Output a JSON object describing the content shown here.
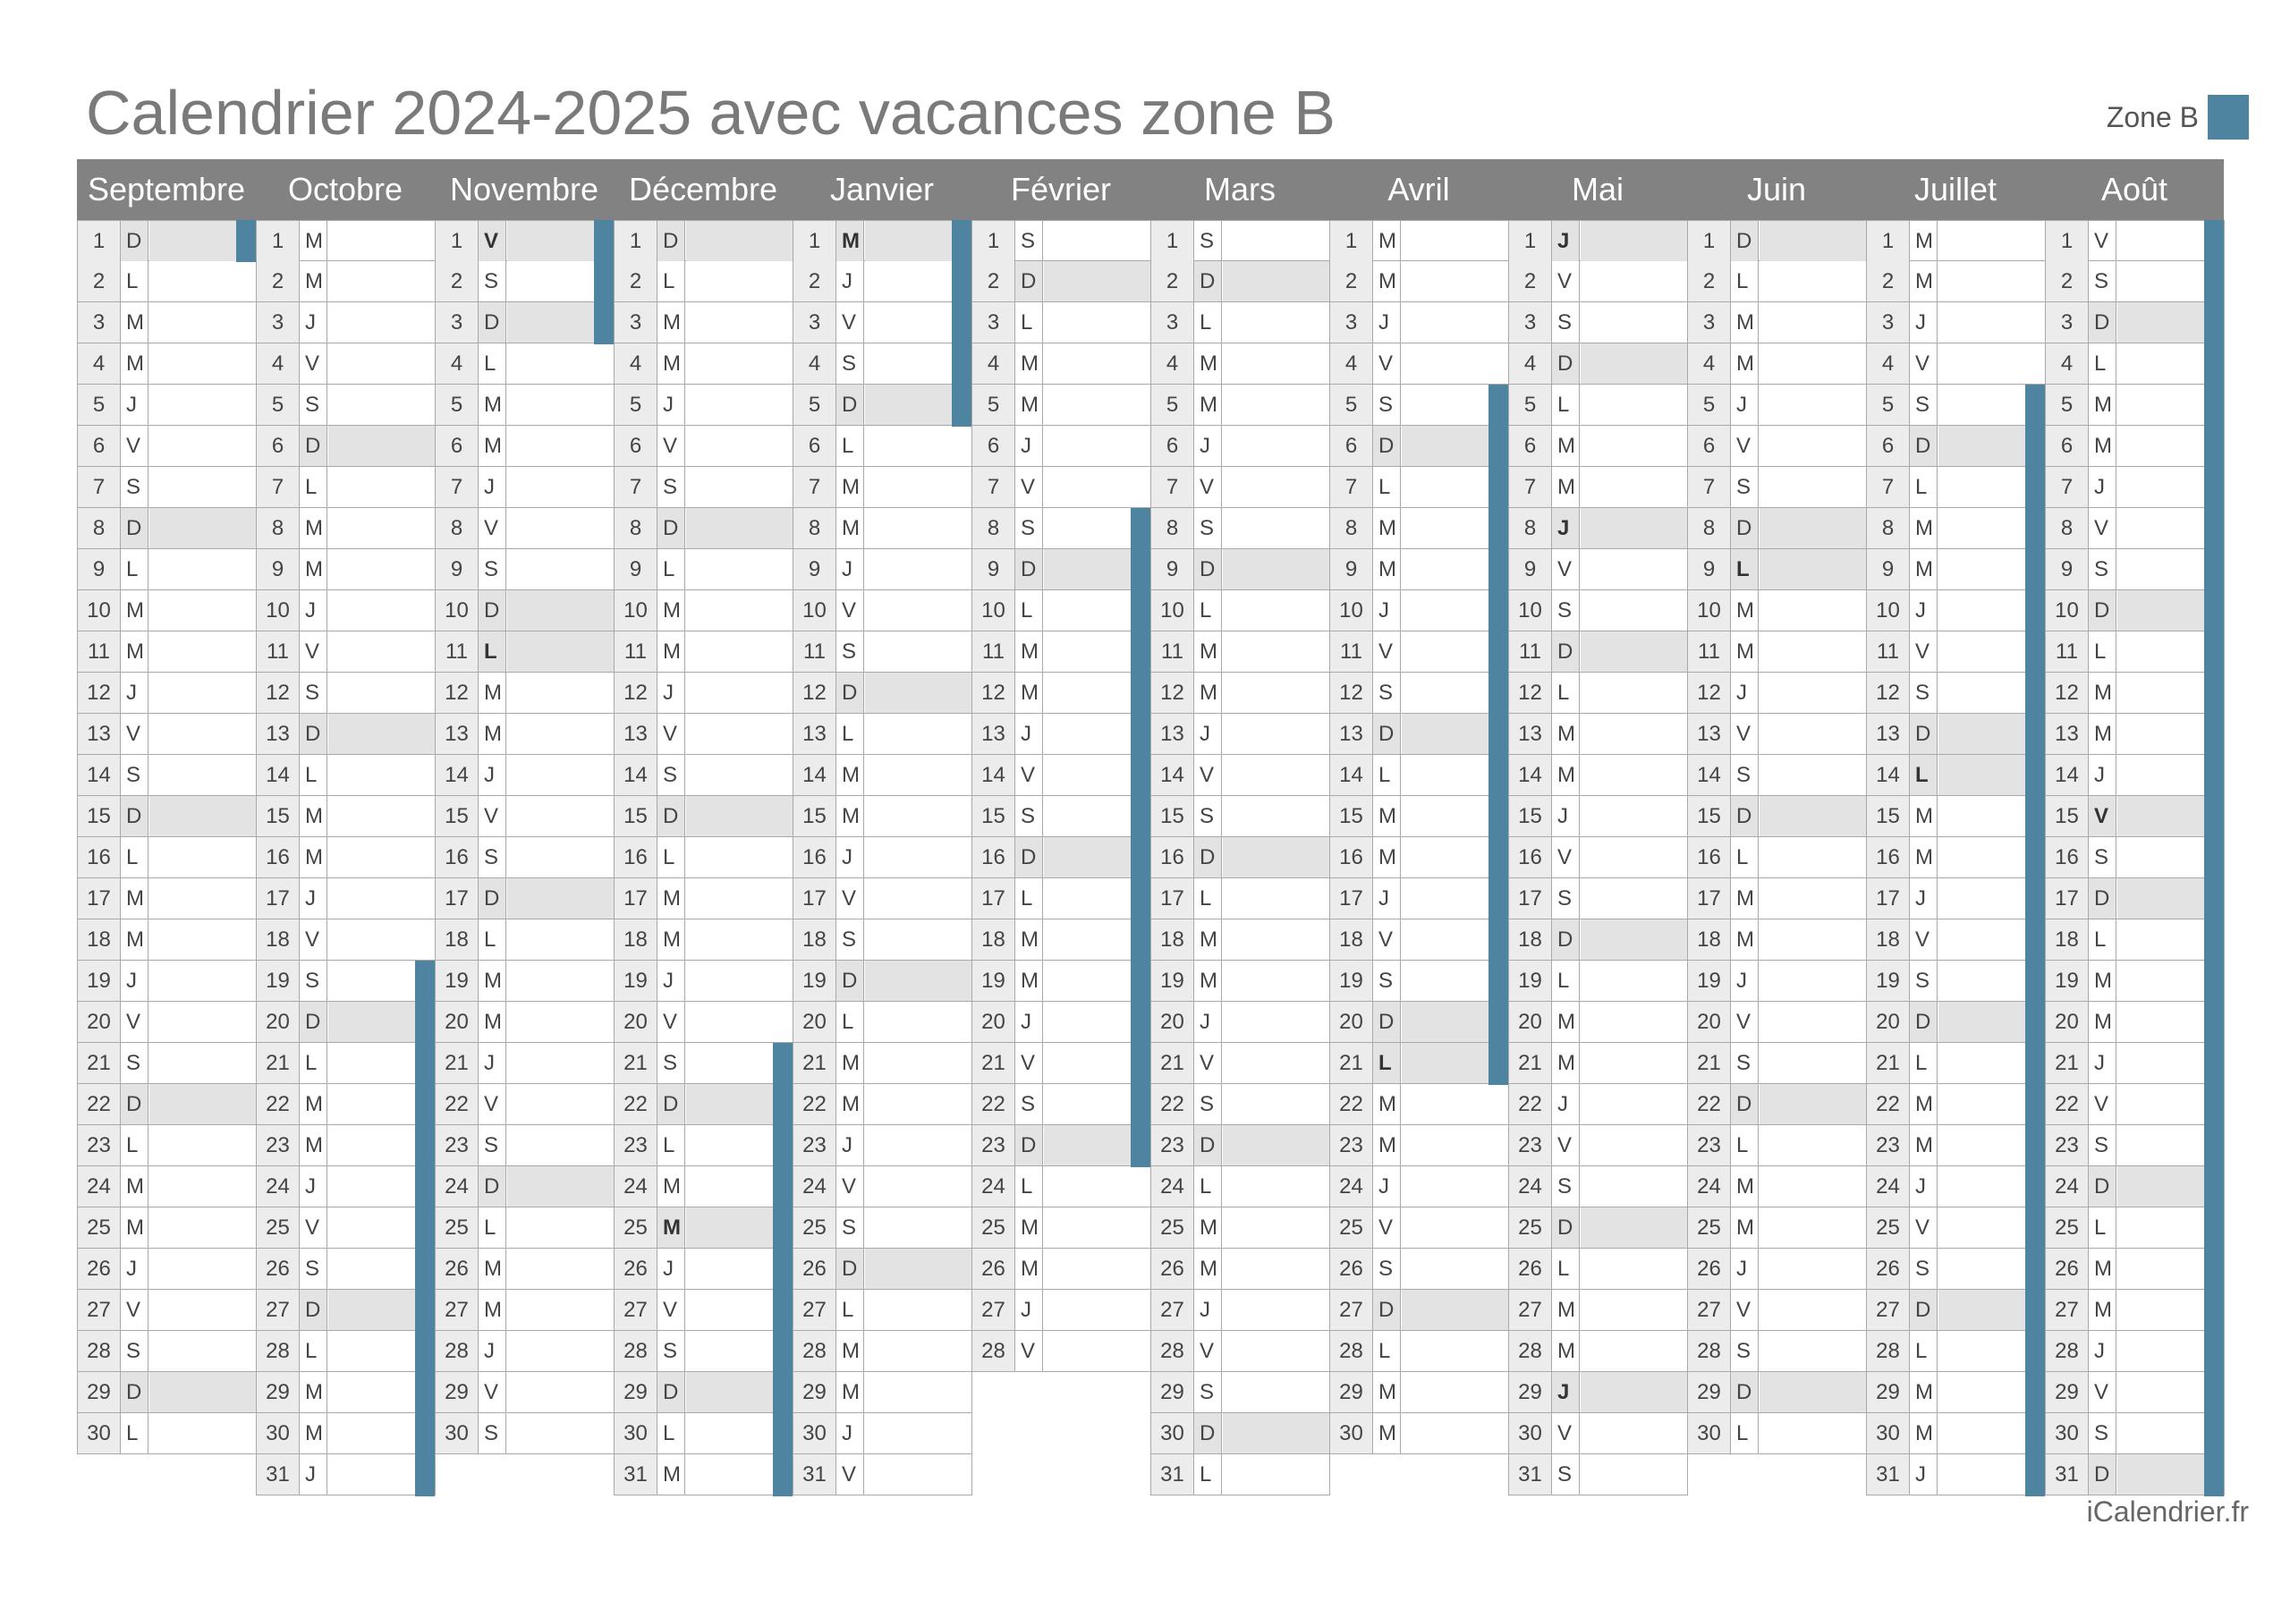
{
  "page": {
    "title": "Calendrier 2024-2025 avec vacances zone B",
    "legend_label": "Zone B",
    "credit": "iCalendrier.fr"
  },
  "colors": {
    "vacation": "#4f84a0",
    "header_bg": "#828282",
    "weekend": "#e3e3e3",
    "daynum_bg": "#ececec"
  },
  "months": [
    {
      "name": "Septembre",
      "days": 30,
      "start_index": 6,
      "holidays": [],
      "vacations": [
        [
          1,
          1
        ]
      ]
    },
    {
      "name": "Octobre",
      "days": 31,
      "start_index": 1,
      "holidays": [],
      "vacations": [
        [
          19,
          31
        ]
      ]
    },
    {
      "name": "Novembre",
      "days": 30,
      "start_index": 4,
      "holidays": [
        1,
        11
      ],
      "vacations": [
        [
          1,
          3
        ]
      ]
    },
    {
      "name": "Décembre",
      "days": 31,
      "start_index": 6,
      "holidays": [
        25
      ],
      "vacations": [
        [
          21,
          31
        ]
      ]
    },
    {
      "name": "Janvier",
      "days": 31,
      "start_index": 2,
      "holidays": [
        1
      ],
      "vacations": [
        [
          1,
          5
        ]
      ]
    },
    {
      "name": "Février",
      "days": 28,
      "start_index": 5,
      "holidays": [],
      "vacations": [
        [
          8,
          23
        ]
      ]
    },
    {
      "name": "Mars",
      "days": 31,
      "start_index": 5,
      "holidays": [],
      "vacations": []
    },
    {
      "name": "Avril",
      "days": 30,
      "start_index": 1,
      "holidays": [
        21
      ],
      "vacations": [
        [
          5,
          21
        ]
      ]
    },
    {
      "name": "Mai",
      "days": 31,
      "start_index": 3,
      "holidays": [
        1,
        8,
        29
      ],
      "vacations": []
    },
    {
      "name": "Juin",
      "days": 30,
      "start_index": 6,
      "holidays": [
        9
      ],
      "vacations": []
    },
    {
      "name": "Juillet",
      "days": 31,
      "start_index": 1,
      "holidays": [
        14
      ],
      "vacations": [
        [
          5,
          31
        ]
      ]
    },
    {
      "name": "Août",
      "days": 31,
      "start_index": 4,
      "holidays": [
        15
      ],
      "vacations": [
        [
          1,
          31
        ]
      ]
    }
  ],
  "weekday_letters": [
    "L",
    "M",
    "M",
    "J",
    "V",
    "S",
    "D"
  ]
}
